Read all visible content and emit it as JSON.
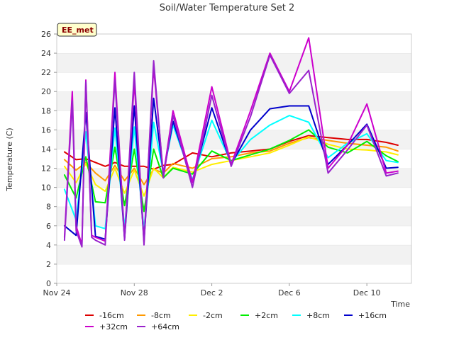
{
  "chart_data": {
    "type": "line",
    "title": "Soil/Water Temperature Set 2",
    "xlabel": "Time",
    "ylabel": "Temperature (C)",
    "badge": "EE_met",
    "xlim": [
      0,
      18.3
    ],
    "ylim": [
      0,
      26
    ],
    "x_unit": "days since Nov 24",
    "xticks": [
      {
        "x": 0,
        "label": "Nov 24"
      },
      {
        "x": 4,
        "label": "Nov 28"
      },
      {
        "x": 8,
        "label": "Dec 2"
      },
      {
        "x": 12,
        "label": "Dec 6"
      },
      {
        "x": 16,
        "label": "Dec 10"
      }
    ],
    "yticks": [
      0,
      2,
      4,
      6,
      8,
      10,
      12,
      14,
      16,
      18,
      20,
      22,
      24,
      26
    ],
    "grid": true,
    "legend": "bottom",
    "series": [
      {
        "name": "-16cm",
        "color": "#dd0000",
        "x": [
          0.4,
          1,
          1.5,
          2.5,
          3,
          3.5,
          4.5,
          5,
          5.5,
          6,
          7,
          8,
          9,
          10,
          11,
          12,
          13,
          14,
          15,
          16,
          17,
          17.6
        ],
        "y": [
          13.7,
          12.9,
          13,
          12.2,
          12.6,
          12.2,
          12.2,
          11.9,
          12.3,
          12.4,
          13.6,
          13.2,
          13.6,
          13.8,
          14,
          14.8,
          15.4,
          15.2,
          15,
          15,
          14.7,
          14.4
        ]
      },
      {
        "name": "-8cm",
        "color": "#ff9900",
        "x": [
          0.4,
          1,
          1.5,
          2,
          2.5,
          3,
          3.5,
          4,
          4.5,
          5,
          5.5,
          6,
          7,
          8,
          9,
          10,
          11,
          12,
          13,
          14,
          15,
          16,
          17,
          17.6
        ],
        "y": [
          12.9,
          11.8,
          12.6,
          11.5,
          10.7,
          12.3,
          10.7,
          12,
          10.3,
          11.9,
          11.5,
          12.5,
          12,
          13,
          13.2,
          13.6,
          13.8,
          14.6,
          15.2,
          14.9,
          14.6,
          14.4,
          14.2,
          13.8
        ]
      },
      {
        "name": "-2cm",
        "color": "#ffee00",
        "x": [
          0.4,
          1,
          1.5,
          2,
          2.5,
          3,
          3.5,
          4,
          4.5,
          5,
          5.5,
          6,
          7,
          8,
          9,
          10,
          11,
          12,
          13,
          14,
          15,
          16,
          17,
          17.6
        ],
        "y": [
          12.2,
          10.5,
          12.5,
          10.3,
          9.6,
          12,
          9.4,
          11.8,
          9.1,
          12,
          11,
          12.1,
          11.6,
          12.4,
          12.8,
          13.2,
          13.6,
          14.4,
          15.3,
          14.5,
          14,
          13.9,
          13.7,
          13.4
        ]
      },
      {
        "name": "+2cm",
        "color": "#00ee00",
        "x": [
          0.4,
          1,
          1.5,
          2,
          2.5,
          3,
          3.5,
          4,
          4.5,
          5,
          5.5,
          6,
          7,
          8,
          9,
          10,
          11,
          12,
          13,
          14,
          15,
          16,
          17,
          17.6
        ],
        "y": [
          11.3,
          8.9,
          13.2,
          8.5,
          8.4,
          14.2,
          8.1,
          14,
          7.5,
          14,
          11,
          12,
          11.4,
          13.8,
          12.8,
          13.4,
          14,
          14.9,
          16,
          14.2,
          13.6,
          14.8,
          13.3,
          12.7
        ]
      },
      {
        "name": "+8cm",
        "color": "#00ffff",
        "x": [
          0.4,
          1,
          1.5,
          2,
          2.5,
          3,
          3.5,
          4,
          4.5,
          5,
          5.5,
          6,
          7,
          8,
          9,
          10,
          11,
          12,
          13,
          14,
          15,
          16,
          17,
          17.6
        ],
        "y": [
          9.8,
          6.6,
          15.8,
          6,
          5.7,
          16.2,
          5.8,
          16.3,
          5.5,
          16.8,
          11.5,
          16.5,
          10.8,
          17,
          12.6,
          15,
          16.5,
          17.5,
          16.8,
          13.1,
          14.6,
          15.6,
          12.8,
          12.6
        ]
      },
      {
        "name": "+16cm",
        "color": "#0000cc",
        "x": [
          0.4,
          1,
          1.5,
          2,
          2.5,
          3,
          3.5,
          4,
          4.5,
          5,
          5.5,
          6,
          7,
          8,
          9,
          10,
          11,
          12,
          13,
          14,
          15,
          16,
          17,
          17.6
        ],
        "y": [
          6,
          5,
          17.8,
          4.9,
          4.6,
          18.3,
          4.7,
          18.5,
          4.5,
          19.3,
          11.4,
          16.9,
          10.6,
          18.3,
          12.4,
          16,
          18.2,
          18.5,
          18.5,
          12.4,
          14.4,
          16.6,
          12,
          12.1
        ]
      },
      {
        "name": "+32cm",
        "color": "#cc00cc",
        "x": [
          0.4,
          0.8,
          1,
          1.3,
          1.5,
          1.8,
          2,
          2.5,
          3,
          3.5,
          4,
          4.5,
          5,
          5.5,
          6,
          7,
          8,
          9,
          10,
          11,
          12,
          13,
          14,
          15,
          16,
          17,
          17.6
        ],
        "y": [
          4.8,
          20,
          6,
          4,
          21.2,
          5,
          4.8,
          4.4,
          22,
          4.7,
          21,
          4.3,
          22.5,
          11.3,
          18,
          10.5,
          20.5,
          12.4,
          18,
          24,
          20,
          25.6,
          12,
          14.4,
          18.7,
          11.5,
          11.7
        ]
      },
      {
        "name": "+64cm",
        "color": "#9922cc",
        "x": [
          0.4,
          0.8,
          1,
          1.3,
          1.5,
          1.8,
          2,
          2.5,
          3,
          3.5,
          4,
          4.5,
          5,
          5.5,
          6,
          7,
          8,
          9,
          10,
          11,
          12,
          13,
          14,
          15,
          16,
          17,
          17.6
        ],
        "y": [
          4.5,
          19,
          5.5,
          3.8,
          21,
          4.8,
          4.5,
          4,
          21.2,
          4.5,
          22,
          4,
          23.2,
          11,
          17.5,
          10,
          19.6,
          12.2,
          17.4,
          23.8,
          19.8,
          22.2,
          11.5,
          13.9,
          16.5,
          11.2,
          11.5
        ]
      }
    ]
  }
}
